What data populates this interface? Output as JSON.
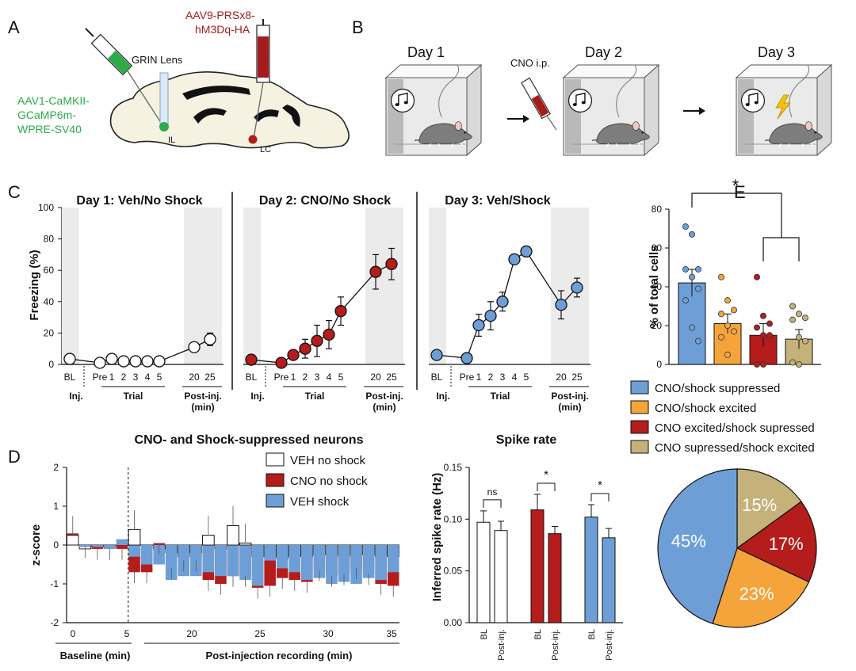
{
  "panels": {
    "a": "A",
    "b": "B",
    "c": "C",
    "d": "D",
    "e": "E"
  },
  "panel_a": {
    "virus_green": [
      "AAV1-CaMKII-",
      "GCaMP6m-",
      "WPRE-SV40"
    ],
    "virus_red": [
      "AAV9-PRSx8-",
      "hM3Dq-HA"
    ],
    "lens": "GRIN Lens",
    "region_il": "IL",
    "region_lc": "LC"
  },
  "panel_b": {
    "days": [
      "Day 1",
      "Day 2",
      "Day 3"
    ],
    "injection": "CNO i.p."
  },
  "colors": {
    "white": "#ffffff",
    "red": "#b51c1c",
    "blue": "#6d9fd6",
    "orange": "#f4a43a",
    "khaki": "#c5b27a",
    "green": "#2daa4a"
  },
  "chart_data": [
    {
      "type": "line",
      "panel": "C",
      "ylabel": "Freezing (%)",
      "ylim": [
        0,
        100
      ],
      "yticks": [
        "0",
        "20",
        "40",
        "60",
        "80",
        "100"
      ],
      "x_labels": [
        "BL",
        "Pre",
        "1",
        "2",
        "3",
        "4",
        "5",
        "20",
        "25"
      ],
      "group_labels": {
        "inj": "Inj.",
        "trial": "Trial",
        "post": "Post-inj.",
        "post_unit": "(min)"
      },
      "series": [
        {
          "name": "Day 1: Veh/No Shock",
          "color": "#ffffff",
          "values": [
            3.5,
            1,
            3.5,
            2,
            2,
            2,
            2,
            11,
            16
          ],
          "errors": [
            0,
            0,
            0,
            0,
            0,
            0,
            0,
            3,
            4
          ]
        },
        {
          "name": "Day 2: CNO/No Shock",
          "color": "#b51c1c",
          "values": [
            3,
            1,
            6,
            10,
            15,
            19,
            34,
            59,
            64
          ],
          "errors": [
            0,
            0,
            2,
            6,
            10,
            9,
            9,
            11,
            10
          ]
        },
        {
          "name": "Day 3: Veh/Shock",
          "color": "#6d9fd6",
          "values": [
            6,
            4,
            25,
            31,
            40,
            67,
            72,
            38,
            49
          ],
          "errors": [
            0,
            0,
            7,
            9,
            6,
            3,
            3,
            9,
            6
          ]
        }
      ]
    },
    {
      "type": "bar",
      "panel": "D",
      "title": "CNO- and Shock-suppressed neurons",
      "ylabel": "z-score",
      "ylim": [
        -2,
        2
      ],
      "yticks": [
        "-2",
        "-1",
        "0",
        "1",
        "2"
      ],
      "xticks": [
        "0",
        "5",
        "20",
        "25",
        "30",
        "35"
      ],
      "group_labels": {
        "baseline": "Baseline (min)",
        "post": "Post-injection recording (min)"
      },
      "series": [
        {
          "name": "VEH no shock",
          "color": "#ffffff",
          "values": [
            0.25,
            -0.1,
            -0.05,
            -0.05,
            0,
            0.4,
            0.0,
            -0.1,
            -0.2,
            -0.3,
            -0.2,
            0.25,
            -0.1,
            0.5,
            0.05,
            -0.3,
            -0.3,
            -0.35,
            -0.3,
            -0.3,
            -0.25,
            -0.25,
            -0.3,
            -0.25,
            -0.25,
            -0.3,
            -0.3
          ]
        },
        {
          "name": "CNO no shock",
          "color": "#b51c1c",
          "values": [
            0.3,
            -0.05,
            -0.1,
            -0.1,
            -0.1,
            -0.7,
            -0.7,
            0.05,
            -0.6,
            -0.4,
            -0.4,
            -0.9,
            -1.0,
            -0.8,
            -0.8,
            -1.1,
            -1.05,
            -0.85,
            -0.9,
            -0.95,
            -0.65,
            -0.8,
            -0.75,
            -0.6,
            -0.75,
            -1.0,
            -1.05
          ]
        },
        {
          "name": "VEH shock",
          "color": "#6d9fd6",
          "values": [
            0.2,
            -0.05,
            -0.05,
            -0.1,
            0.15,
            -0.3,
            -0.5,
            -0.5,
            -0.9,
            -0.8,
            -0.8,
            -0.7,
            -0.8,
            -0.8,
            -0.9,
            -1.05,
            -0.4,
            -0.6,
            -0.7,
            -0.9,
            -0.85,
            -1.0,
            -0.95,
            -1.0,
            -0.85,
            -0.9,
            -0.7
          ]
        }
      ]
    },
    {
      "type": "bar",
      "panel": "D",
      "title": "Spike rate",
      "ylabel": "Inferred spike rate (Hz)",
      "ylim": [
        0,
        0.15
      ],
      "yticks": [
        "0.00",
        "0.05",
        "0.10",
        "0.15"
      ],
      "categories": [
        "BL",
        "Post-inj."
      ],
      "series": [
        {
          "name": "VEH no shock",
          "color": "#ffffff",
          "values": [
            0.097,
            0.089
          ],
          "errors": [
            0.011,
            0.009
          ]
        },
        {
          "name": "CNO no shock",
          "color": "#b51c1c",
          "values": [
            0.109,
            0.086
          ],
          "errors": [
            0.015,
            0.007
          ]
        },
        {
          "name": "VEH shock",
          "color": "#6d9fd6",
          "values": [
            0.102,
            0.082
          ],
          "errors": [
            0.012,
            0.009
          ]
        }
      ],
      "significance": [
        "ns",
        "*",
        "*"
      ]
    },
    {
      "type": "bar",
      "panel": "E",
      "ylabel": "% of total cells",
      "ylim": [
        0,
        80
      ],
      "yticks": [
        "0",
        "20",
        "40",
        "60",
        "80"
      ],
      "significance": "*",
      "categories": [
        "CNO/shock suppressed",
        "CNO/shock excited",
        "CNO excited/shock supressed",
        "CNO supressed/shock excited"
      ],
      "colors": [
        "#6d9fd6",
        "#f4a43a",
        "#b51c1c",
        "#c5b27a"
      ],
      "values": [
        42,
        21,
        15,
        13
      ],
      "errors": [
        7,
        5,
        6,
        5
      ],
      "points": [
        [
          71,
          67,
          49,
          49,
          45,
          39,
          33,
          19,
          12
        ],
        [
          45,
          33,
          28,
          26,
          20,
          17,
          14,
          5
        ],
        [
          45,
          25,
          21,
          19,
          15,
          15,
          0,
          0
        ],
        [
          30,
          26,
          24,
          23,
          14,
          12,
          1,
          0
        ]
      ]
    },
    {
      "type": "pie",
      "panel": "E",
      "labels": [
        "CNO/shock suppressed",
        "CNO/shock excited",
        "CNO excited/shock supressed",
        "CNO supressed/shock excited"
      ],
      "values": [
        45,
        23,
        17,
        15
      ],
      "value_labels": [
        "45%",
        "23%",
        "17%",
        "15%"
      ],
      "colors": [
        "#6d9fd6",
        "#f4a43a",
        "#b51c1c",
        "#c5b27a"
      ]
    }
  ]
}
